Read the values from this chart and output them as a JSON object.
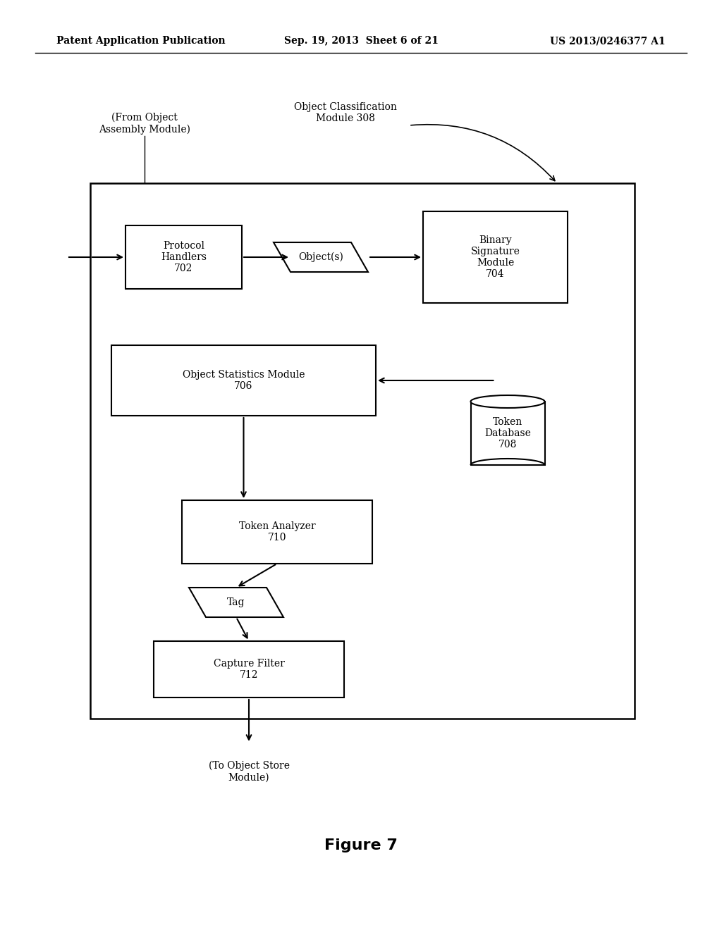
{
  "bg_color": "#ffffff",
  "header_left": "Patent Application Publication",
  "header_center": "Sep. 19, 2013  Sheet 6 of 21",
  "header_right": "US 2013/0246377 A1",
  "figure_label": "Figure 7",
  "label_from_object": "(From Object\nAssembly Module)",
  "label_object_class": "Object Classification\nModule 308",
  "label_to_object": "(To Object Store\nModule)"
}
